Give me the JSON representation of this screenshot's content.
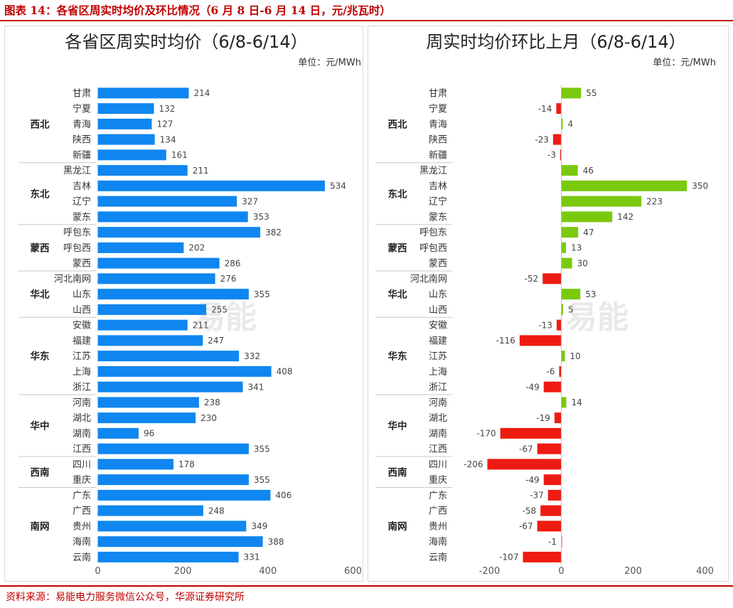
{
  "figure": {
    "title": "图表 14：各省区周实时均价及环比情况（6 月 8 日-6 月 14 日，元/兆瓦时）",
    "source": "资料来源：易能电力服务微信公众号，华源证券研究所",
    "watermark": "易能"
  },
  "colors": {
    "accent": "#c00000",
    "bar_blue": "#0f86f0",
    "pos": "#7ac90f",
    "neg": "#ee1b12",
    "separator": "#c8c8c8",
    "axis": "#bfbfbf"
  },
  "chart_data": [
    {
      "type": "bar",
      "orientation": "horizontal",
      "title": "各省区周实时均价（6/8-6/14）",
      "unit": "单位：元/MWh",
      "xlim": [
        0,
        600
      ],
      "xticks": [
        0,
        200,
        400,
        600
      ],
      "groups": [
        {
          "name": "西北",
          "categories": [
            "甘肃",
            "宁夏",
            "青海",
            "陕西",
            "新疆"
          ]
        },
        {
          "name": "东北",
          "categories": [
            "黑龙江",
            "吉林",
            "辽宁",
            "蒙东"
          ]
        },
        {
          "name": "蒙西",
          "categories": [
            "呼包东",
            "呼包西",
            "蒙西"
          ]
        },
        {
          "name": "华北",
          "categories": [
            "河北南网",
            "山东",
            "山西"
          ]
        },
        {
          "name": "华东",
          "categories": [
            "安徽",
            "福建",
            "江苏",
            "上海",
            "浙江"
          ]
        },
        {
          "name": "华中",
          "categories": [
            "河南",
            "湖北",
            "湖南",
            "江西"
          ]
        },
        {
          "name": "西南",
          "categories": [
            "四川",
            "重庆"
          ]
        },
        {
          "name": "南网",
          "categories": [
            "广东",
            "广西",
            "贵州",
            "海南",
            "云南"
          ]
        }
      ],
      "values": [
        214,
        132,
        127,
        134,
        161,
        211,
        534,
        327,
        353,
        382,
        202,
        286,
        276,
        355,
        255,
        211,
        247,
        332,
        408,
        341,
        238,
        230,
        96,
        355,
        178,
        355,
        406,
        248,
        349,
        388,
        331
      ]
    },
    {
      "type": "bar",
      "orientation": "horizontal",
      "title": "周实时均价环比上月（6/8-6/14）",
      "unit": "单位：元/MWh",
      "xlim": [
        -200,
        400
      ],
      "xticks": [
        -200,
        0,
        200,
        400
      ],
      "groups": [
        {
          "name": "西北",
          "categories": [
            "甘肃",
            "宁夏",
            "青海",
            "陕西",
            "新疆"
          ]
        },
        {
          "name": "东北",
          "categories": [
            "黑龙江",
            "吉林",
            "辽宁",
            "蒙东"
          ]
        },
        {
          "name": "蒙西",
          "categories": [
            "呼包东",
            "呼包西",
            "蒙西"
          ]
        },
        {
          "name": "华北",
          "categories": [
            "河北南网",
            "山东",
            "山西"
          ]
        },
        {
          "name": "华东",
          "categories": [
            "安徽",
            "福建",
            "江苏",
            "上海",
            "浙江"
          ]
        },
        {
          "name": "华中",
          "categories": [
            "河南",
            "湖北",
            "湖南",
            "江西"
          ]
        },
        {
          "name": "西南",
          "categories": [
            "四川",
            "重庆"
          ]
        },
        {
          "name": "南网",
          "categories": [
            "广东",
            "广西",
            "贵州",
            "海南",
            "云南"
          ]
        }
      ],
      "values": [
        55,
        -14,
        4,
        -23,
        -3,
        46,
        350,
        223,
        142,
        47,
        13,
        30,
        -52,
        53,
        5,
        -13,
        -116,
        10,
        -6,
        -49,
        14,
        -19,
        -170,
        -67,
        -206,
        -49,
        -37,
        -58,
        -67,
        -1,
        -107
      ]
    }
  ]
}
